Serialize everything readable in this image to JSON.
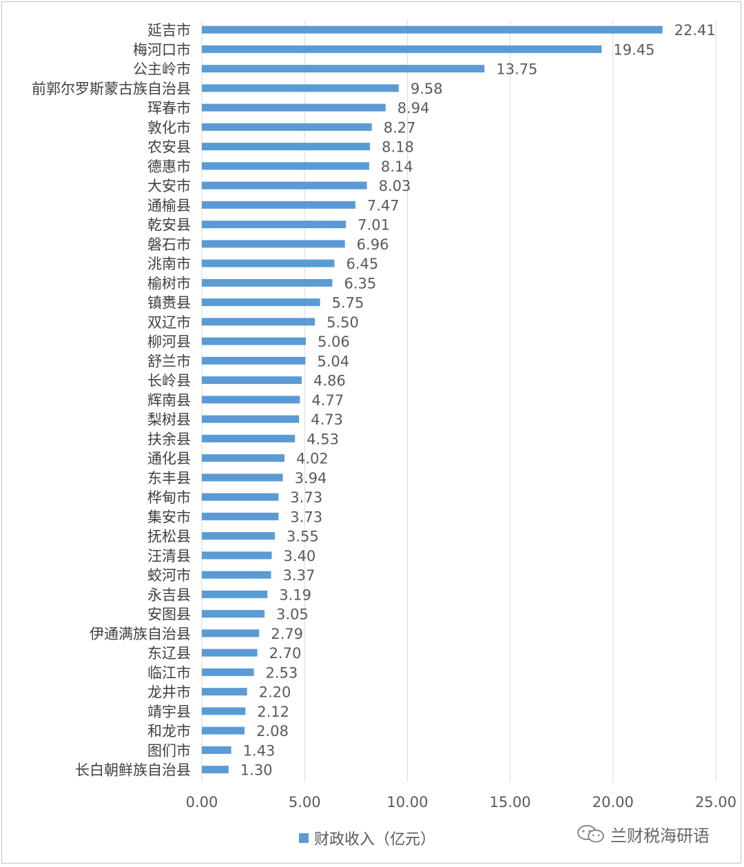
{
  "chart_data": {
    "type": "bar",
    "orientation": "horizontal",
    "categories": [
      "延吉市",
      "梅河口市",
      "公主岭市",
      "前郭尔罗斯蒙古族自治县",
      "珲春市",
      "敦化市",
      "农安县",
      "德惠市",
      "大安市",
      "通榆县",
      "乾安县",
      "磐石市",
      "洮南市",
      "榆树市",
      "镇赉县",
      "双辽市",
      "柳河县",
      "舒兰市",
      "长岭县",
      "辉南县",
      "梨树县",
      "扶余县",
      "通化县",
      "东丰县",
      "桦甸市",
      "集安市",
      "抚松县",
      "汪清县",
      "蛟河市",
      "永吉县",
      "安图县",
      "伊通满族自治县",
      "东辽县",
      "临江市",
      "龙井市",
      "靖宇县",
      "和龙市",
      "图们市",
      "长白朝鲜族自治县"
    ],
    "series": [
      {
        "name": "财政收入（亿元）",
        "values": [
          22.41,
          19.45,
          13.75,
          9.58,
          8.94,
          8.27,
          8.18,
          8.14,
          8.03,
          7.47,
          7.01,
          6.96,
          6.45,
          6.35,
          5.75,
          5.5,
          5.06,
          5.04,
          4.86,
          4.77,
          4.73,
          4.53,
          4.02,
          3.94,
          3.73,
          3.73,
          3.55,
          3.4,
          3.37,
          3.19,
          3.05,
          2.79,
          2.7,
          2.53,
          2.2,
          2.12,
          2.08,
          1.43,
          1.3
        ],
        "value_labels": [
          "22.41",
          "19.45",
          "13.75",
          "9.58",
          "8.94",
          "8.27",
          "8.18",
          "8.14",
          "8.03",
          "7.47",
          "7.01",
          "6.96",
          "6.45",
          "6.35",
          "5.75",
          "5.50",
          "5.06",
          "5.04",
          "4.86",
          "4.77",
          "4.73",
          "4.53",
          "4.02",
          "3.94",
          "3.73",
          "3.73",
          "3.55",
          "3.40",
          "3.37",
          "3.19",
          "3.05",
          "2.79",
          "2.70",
          "2.53",
          "2.20",
          "2.12",
          "2.08",
          "1.43",
          "1.30"
        ],
        "color": "#5b9bd5"
      }
    ],
    "xlim": [
      0,
      25
    ],
    "x_ticks": [
      "0.00",
      "5.00",
      "10.00",
      "15.00",
      "20.00",
      "25.00"
    ],
    "grid": "vertical",
    "legend_position": "bottom"
  },
  "legend": {
    "label": "财政收入（亿元）"
  },
  "watermark": {
    "text": "兰财税海研语"
  },
  "colors": {
    "bar": "#5b9bd5",
    "grid": "#d9d9d9",
    "text": "#404040",
    "tick": "#595959"
  }
}
